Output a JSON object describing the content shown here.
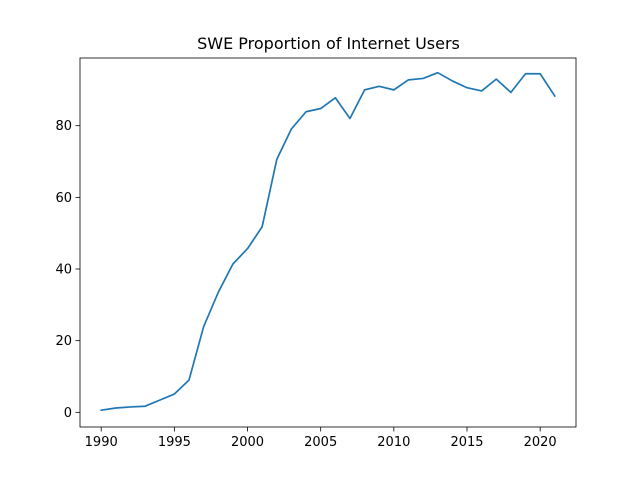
{
  "chart_data": {
    "type": "line",
    "title": "SWE Proportion of Internet Users",
    "xlabel": "",
    "ylabel": "",
    "xlim": [
      1988.55,
      2022.45
    ],
    "ylim": [
      -4.1,
      98.9
    ],
    "x_ticks": [
      1990,
      1995,
      2000,
      2005,
      2010,
      2015,
      2020
    ],
    "y_ticks": [
      0,
      20,
      40,
      60,
      80
    ],
    "grid": false,
    "legend": "none",
    "series_color": "#1f77b4",
    "x": [
      1990,
      1991,
      1992,
      1993,
      1994,
      1995,
      1996,
      1997,
      1998,
      1999,
      2000,
      2001,
      2002,
      2003,
      2004,
      2005,
      2006,
      2007,
      2008,
      2009,
      2010,
      2011,
      2012,
      2013,
      2014,
      2015,
      2016,
      2017,
      2018,
      2019,
      2020,
      2021
    ],
    "y": [
      0.6,
      1.2,
      1.5,
      1.7,
      3.4,
      5.1,
      9.0,
      23.9,
      33.5,
      41.4,
      45.7,
      51.8,
      70.6,
      79.1,
      83.9,
      84.8,
      87.8,
      82.0,
      90.0,
      91.0,
      90.0,
      92.8,
      93.2,
      94.8,
      92.5,
      90.6,
      89.7,
      93.0,
      89.3,
      94.5,
      94.5,
      88.3
    ]
  }
}
